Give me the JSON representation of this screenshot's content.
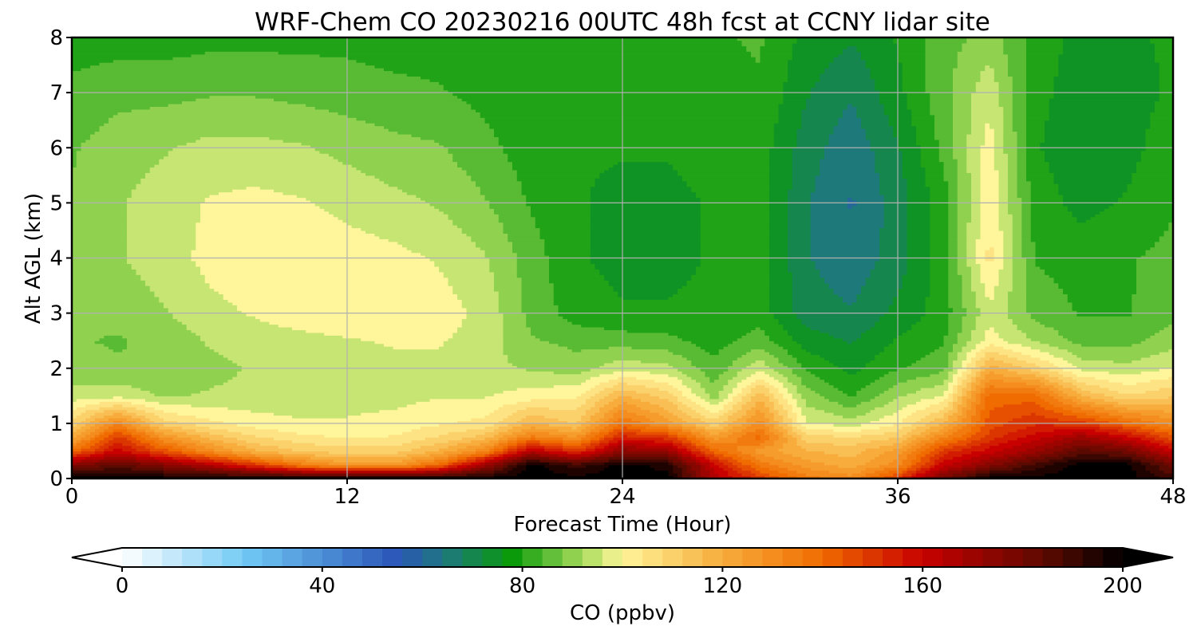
{
  "chart_data": {
    "type": "heatmap",
    "title": "WRF-Chem CO  20230216 00UTC 48h fcst at CCNY lidar site",
    "xlabel": "Forecast Time (Hour)",
    "ylabel": "Alt AGL (km)",
    "xlim": [
      0,
      48
    ],
    "ylim": [
      0,
      8
    ],
    "xticks": [
      "0",
      "12",
      "24",
      "36",
      "48"
    ],
    "yticks": [
      "0",
      "1",
      "2",
      "3",
      "4",
      "5",
      "6",
      "7",
      "8"
    ],
    "grid": true,
    "colorbar": {
      "label": "CO  (ppbv)",
      "range": [
        0,
        200
      ],
      "ticks": [
        "0",
        "40",
        "80",
        "120",
        "160",
        "200"
      ],
      "extend": "both",
      "orientation": "horizontal",
      "placement": "bottom"
    },
    "altitudes_km": [
      0,
      0.25,
      0.5,
      0.75,
      1,
      1.5,
      2,
      2.5,
      3,
      4,
      5,
      6,
      7,
      8
    ],
    "times_h": [
      0,
      2,
      4,
      6,
      8,
      10,
      12,
      14,
      16,
      18,
      20,
      22,
      24,
      26,
      28,
      30,
      32,
      34,
      36,
      38,
      40,
      42,
      44,
      46,
      48
    ],
    "values_ppbv": [
      [
        200,
        200,
        200,
        200,
        200,
        200,
        200,
        200,
        200,
        200,
        200,
        200,
        200,
        200,
        165,
        150,
        135,
        130,
        150,
        180,
        200,
        200,
        200,
        200,
        190
      ],
      [
        175,
        185,
        175,
        165,
        150,
        135,
        125,
        125,
        140,
        170,
        200,
        190,
        200,
        195,
        160,
        135,
        125,
        120,
        130,
        160,
        175,
        190,
        200,
        200,
        180
      ],
      [
        140,
        160,
        145,
        130,
        118,
        112,
        110,
        110,
        118,
        132,
        165,
        150,
        175,
        170,
        140,
        125,
        118,
        115,
        125,
        150,
        160,
        170,
        185,
        180,
        160
      ],
      [
        120,
        150,
        128,
        116,
        108,
        104,
        102,
        103,
        108,
        115,
        135,
        128,
        155,
        150,
        125,
        140,
        110,
        108,
        112,
        132,
        150,
        160,
        170,
        160,
        145
      ],
      [
        110,
        132,
        110,
        104,
        100,
        98,
        98,
        99,
        102,
        104,
        118,
        112,
        138,
        125,
        110,
        130,
        98,
        95,
        102,
        118,
        145,
        152,
        150,
        140,
        130
      ],
      [
        95,
        96,
        92,
        93,
        94,
        95,
        96,
        96,
        97,
        97,
        100,
        102,
        118,
        110,
        90,
        116,
        90,
        82,
        92,
        98,
        140,
        140,
        118,
        108,
        112
      ],
      [
        89,
        88,
        88,
        91,
        93,
        94,
        95,
        96,
        96,
        94,
        92,
        90,
        96,
        94,
        84,
        96,
        82,
        76,
        82,
        86,
        120,
        110,
        96,
        94,
        98
      ],
      [
        88,
        87,
        89,
        93,
        95,
        96,
        97,
        98,
        98,
        95,
        88,
        86,
        85,
        84,
        80,
        85,
        75,
        72,
        78,
        82,
        100,
        92,
        86,
        86,
        90
      ],
      [
        88,
        89,
        92,
        96,
        98,
        100,
        101,
        101,
        100,
        96,
        86,
        80,
        78,
        78,
        79,
        80,
        70,
        68,
        74,
        80,
        96,
        86,
        82,
        82,
        86
      ],
      [
        89,
        92,
        95,
        99,
        101,
        101,
        100,
        99,
        97,
        93,
        85,
        78,
        76,
        76,
        78,
        80,
        68,
        64,
        70,
        80,
        104,
        82,
        80,
        82,
        84
      ],
      [
        88,
        92,
        95,
        98,
        99,
        98,
        96,
        94,
        92,
        88,
        82,
        78,
        76,
        76,
        78,
        80,
        68,
        62,
        70,
        80,
        102,
        80,
        76,
        78,
        82
      ],
      [
        87,
        90,
        92,
        94,
        94,
        93,
        91,
        89,
        88,
        84,
        80,
        78,
        78,
        78,
        80,
        80,
        70,
        64,
        72,
        84,
        100,
        78,
        74,
        76,
        80
      ],
      [
        84,
        86,
        86,
        87,
        87,
        86,
        85,
        84,
        83,
        81,
        79,
        79,
        79,
        80,
        81,
        82,
        73,
        68,
        76,
        86,
        96,
        79,
        75,
        76,
        78
      ],
      [
        80,
        80,
        80,
        81,
        81,
        81,
        81,
        80,
        80,
        79,
        79,
        80,
        80,
        81,
        82,
        83,
        76,
        73,
        78,
        85,
        90,
        80,
        76,
        77,
        78
      ]
    ]
  }
}
